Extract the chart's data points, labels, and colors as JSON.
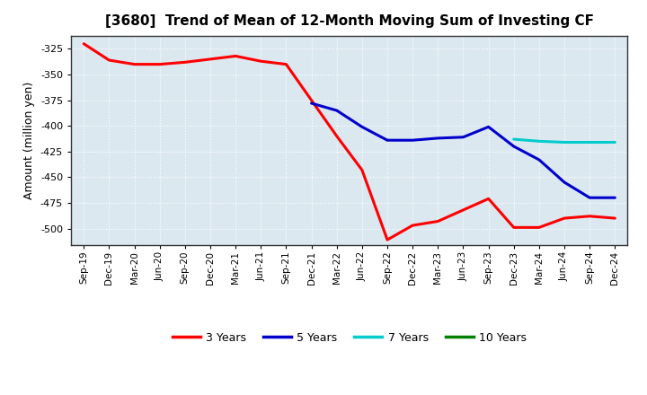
{
  "title": "[3680]  Trend of Mean of 12-Month Moving Sum of Investing CF",
  "ylabel": "Amount (million yen)",
  "background_color": "#ffffff",
  "plot_bg_color": "#dce8f0",
  "grid_color": "#ffffff",
  "ylim": [
    -516,
    -312
  ],
  "yticks": [
    -500,
    -475,
    -450,
    -425,
    -400,
    -375,
    -350,
    -325
  ],
  "x_labels": [
    "Sep-19",
    "Dec-19",
    "Mar-20",
    "Jun-20",
    "Sep-20",
    "Dec-20",
    "Mar-21",
    "Jun-21",
    "Sep-21",
    "Dec-21",
    "Mar-22",
    "Jun-22",
    "Sep-22",
    "Dec-22",
    "Mar-23",
    "Jun-23",
    "Sep-23",
    "Dec-23",
    "Mar-24",
    "Jun-24",
    "Sep-24",
    "Dec-24"
  ],
  "series_order": [
    "3 Years",
    "5 Years",
    "7 Years",
    "10 Years"
  ],
  "series": {
    "3 Years": {
      "color": "#ff0000",
      "x": [
        "Sep-19",
        "Dec-19",
        "Mar-20",
        "Jun-20",
        "Sep-20",
        "Dec-20",
        "Mar-21",
        "Jun-21",
        "Sep-21",
        "Dec-21",
        "Mar-22",
        "Jun-22",
        "Sep-22",
        "Dec-22",
        "Mar-23",
        "Jun-23",
        "Sep-23",
        "Dec-23",
        "Mar-24",
        "Jun-24",
        "Sep-24",
        "Dec-24"
      ],
      "y": [
        -320,
        -336,
        -340,
        -340,
        -338,
        -335,
        -332,
        -337,
        -340,
        -375,
        -410,
        -443,
        -511,
        -497,
        -493,
        -482,
        -471,
        -499,
        -499,
        -490,
        -488,
        -490
      ]
    },
    "5 Years": {
      "color": "#0000cc",
      "x": [
        "Dec-21",
        "Mar-22",
        "Jun-22",
        "Sep-22",
        "Dec-22",
        "Mar-23",
        "Jun-23",
        "Sep-23",
        "Dec-23",
        "Mar-24",
        "Jun-24",
        "Sep-24",
        "Dec-24"
      ],
      "y": [
        -378,
        -385,
        -401,
        -414,
        -414,
        -412,
        -411,
        -401,
        -420,
        -433,
        -455,
        -470,
        -470
      ]
    },
    "7 Years": {
      "color": "#00cccc",
      "x": [
        "Dec-23",
        "Mar-24",
        "Jun-24",
        "Sep-24",
        "Dec-24"
      ],
      "y": [
        -413,
        -415,
        -416,
        -416,
        -416
      ]
    },
    "10 Years": {
      "color": "#008000",
      "x": [],
      "y": []
    }
  },
  "linewidth": 2.2,
  "legend_labels": [
    "3 Years",
    "5 Years",
    "7 Years",
    "10 Years"
  ],
  "legend_colors": [
    "#ff0000",
    "#0000cc",
    "#00cccc",
    "#008000"
  ]
}
